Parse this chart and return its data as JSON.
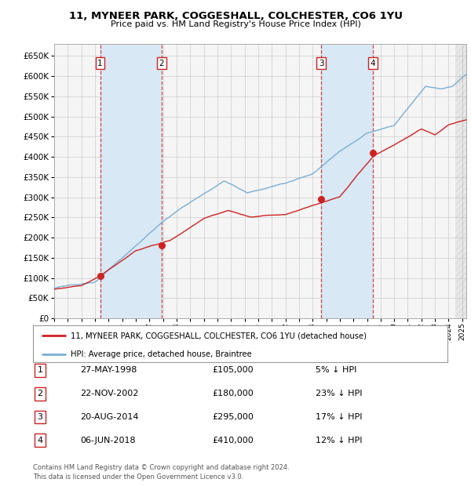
{
  "title": "11, MYNEER PARK, COGGESHALL, COLCHESTER, CO6 1YU",
  "subtitle": "Price paid vs. HM Land Registry's House Price Index (HPI)",
  "ytick_values": [
    0,
    50000,
    100000,
    150000,
    200000,
    250000,
    300000,
    350000,
    400000,
    450000,
    500000,
    550000,
    600000,
    650000
  ],
  "ylim": [
    0,
    680000
  ],
  "xlim_start": 1995.0,
  "xlim_end": 2025.3,
  "sale_points": [
    {
      "label": "1",
      "year": 1998.38,
      "price": 105000,
      "date": "27-MAY-1998",
      "pct": "5%"
    },
    {
      "label": "2",
      "year": 2002.89,
      "price": 180000,
      "date": "22-NOV-2002",
      "pct": "23%"
    },
    {
      "label": "3",
      "year": 2014.63,
      "price": 295000,
      "date": "20-AUG-2014",
      "pct": "17%"
    },
    {
      "label": "4",
      "year": 2018.42,
      "price": 410000,
      "date": "06-JUN-2018",
      "pct": "12%"
    }
  ],
  "hpi_color": "#7aaed4",
  "price_color": "#cc2222",
  "sale_marker_color": "#cc2222",
  "sale_box_color": "#cc2222",
  "shading_color": "#d8e8f5",
  "hatch_start": 2024.5,
  "footer": "Contains HM Land Registry data © Crown copyright and database right 2024.\nThis data is licensed under the Open Government Licence v3.0.",
  "legend_entry1": "11, MYNEER PARK, COGGESHALL, COLCHESTER, CO6 1YU (detached house)",
  "legend_entry2": "HPI: Average price, detached house, Braintree",
  "table_rows": [
    [
      "1",
      "27-MAY-1998",
      "£105,000",
      "5% ↓ HPI"
    ],
    [
      "2",
      "22-NOV-2002",
      "£180,000",
      "23% ↓ HPI"
    ],
    [
      "3",
      "20-AUG-2014",
      "£295,000",
      "17% ↓ HPI"
    ],
    [
      "4",
      "06-JUN-2018",
      "£410,000",
      "12% ↓ HPI"
    ]
  ]
}
